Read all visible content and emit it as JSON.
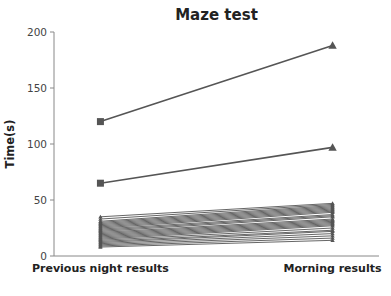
{
  "chart_data": {
    "type": "line",
    "title": "Maze test",
    "y_label": "Time(s)",
    "categories": [
      "Previous night results",
      "Morning results"
    ],
    "ylim": [
      0,
      200
    ],
    "yticks": [
      0,
      50,
      100,
      150,
      200
    ],
    "grid": false,
    "color": "#555555",
    "series": [
      {
        "values": [
          35,
          47
        ],
        "marker": "triangle"
      },
      {
        "values": [
          33,
          46
        ],
        "marker": "triangle"
      },
      {
        "values": [
          31,
          45
        ],
        "marker": "triangle"
      },
      {
        "values": [
          30,
          44
        ],
        "marker": "triangle"
      },
      {
        "values": [
          29,
          43
        ],
        "marker": "triangle"
      },
      {
        "values": [
          28,
          42
        ],
        "marker": "triangle"
      },
      {
        "values": [
          27,
          41
        ],
        "marker": "triangle"
      },
      {
        "values": [
          26,
          40
        ],
        "marker": "triangle"
      },
      {
        "values": [
          25,
          39
        ],
        "marker": "triangle"
      },
      {
        "values": [
          24,
          37
        ],
        "marker": "triangle"
      },
      {
        "values": [
          23,
          36
        ],
        "marker": "triangle"
      },
      {
        "values": [
          22,
          35
        ],
        "marker": "triangle"
      },
      {
        "values": [
          21,
          33
        ],
        "marker": "triangle"
      },
      {
        "values": [
          20,
          32
        ],
        "marker": "triangle"
      },
      {
        "values": [
          19,
          31
        ],
        "marker": "triangle"
      },
      {
        "values": [
          18,
          30
        ],
        "marker": "triangle"
      },
      {
        "values": [
          17,
          29
        ],
        "marker": "triangle"
      },
      {
        "values": [
          16,
          28
        ],
        "marker": "triangle"
      },
      {
        "values": [
          15,
          27
        ],
        "marker": "triangle"
      },
      {
        "values": [
          14,
          25
        ],
        "marker": "triangle"
      },
      {
        "values": [
          13,
          23
        ],
        "marker": "triangle"
      },
      {
        "values": [
          12,
          22
        ],
        "marker": "triangle"
      },
      {
        "values": [
          11,
          20
        ],
        "marker": "triangle"
      },
      {
        "values": [
          10,
          18
        ],
        "marker": "triangle"
      },
      {
        "values": [
          9,
          16
        ],
        "marker": "triangle"
      },
      {
        "values": [
          8,
          14
        ],
        "marker": "triangle"
      },
      {
        "values": [
          120,
          188
        ],
        "marker": "square-triangle"
      },
      {
        "values": [
          65,
          97
        ],
        "marker": "square-triangle"
      }
    ]
  }
}
